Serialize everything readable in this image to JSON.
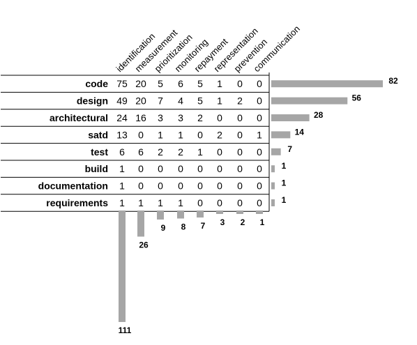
{
  "colors": {
    "bar": "#a6a6a6",
    "line": "#000000",
    "text": "#000000"
  },
  "chart_data": {
    "type": "table",
    "columns": [
      "identification",
      "measurement",
      "prioritization",
      "monitoring",
      "repayment",
      "representation",
      "prevention",
      "communication"
    ],
    "rows": [
      {
        "name": "code",
        "values": [
          75,
          20,
          5,
          6,
          5,
          1,
          0,
          0
        ],
        "total": 82
      },
      {
        "name": "design",
        "values": [
          49,
          20,
          7,
          4,
          5,
          1,
          2,
          0
        ],
        "total": 56
      },
      {
        "name": "architectural",
        "values": [
          24,
          16,
          3,
          3,
          2,
          0,
          0,
          0
        ],
        "total": 28
      },
      {
        "name": "satd",
        "values": [
          13,
          0,
          1,
          1,
          0,
          2,
          0,
          1
        ],
        "total": 14
      },
      {
        "name": "test",
        "values": [
          6,
          6,
          2,
          2,
          1,
          0,
          0,
          0
        ],
        "total": 7
      },
      {
        "name": "build",
        "values": [
          1,
          0,
          0,
          0,
          0,
          0,
          0,
          0
        ],
        "total": 1
      },
      {
        "name": "documentation",
        "values": [
          1,
          0,
          0,
          0,
          0,
          0,
          0,
          0
        ],
        "total": 1
      },
      {
        "name": "requirements",
        "values": [
          1,
          1,
          1,
          1,
          0,
          0,
          0,
          0
        ],
        "total": 1
      }
    ],
    "column_totals": [
      111,
      26,
      9,
      8,
      7,
      3,
      2,
      1
    ]
  }
}
